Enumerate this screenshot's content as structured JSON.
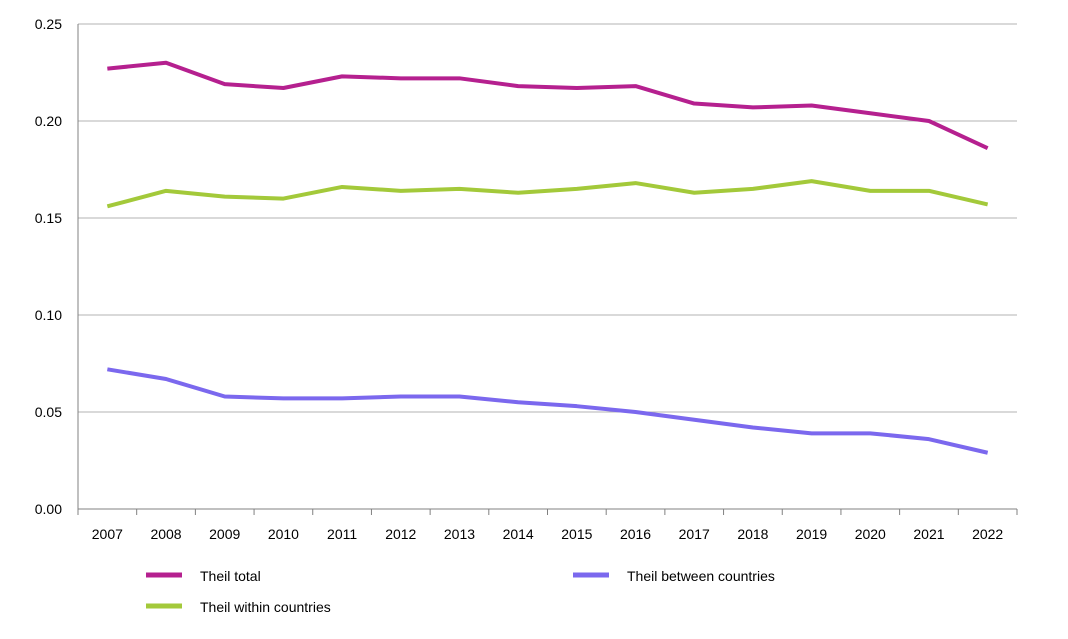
{
  "chart_data": {
    "type": "line",
    "title": "",
    "xlabel": "",
    "ylabel": "",
    "x": [
      "2007",
      "2008",
      "2009",
      "2010",
      "2011",
      "2012",
      "2013",
      "2014",
      "2015",
      "2016",
      "2017",
      "2018",
      "2019",
      "2020",
      "2021",
      "2022"
    ],
    "ylim": [
      0,
      0.25
    ],
    "yticks": [
      "0.00",
      "0.05",
      "0.10",
      "0.15",
      "0.20",
      "0.25"
    ],
    "grid": "horizontal",
    "legend_position": "bottom",
    "series": [
      {
        "name": "Theil total",
        "color": "#b5208f",
        "values": [
          0.227,
          0.23,
          0.219,
          0.217,
          0.223,
          0.222,
          0.222,
          0.218,
          0.217,
          0.218,
          0.209,
          0.207,
          0.208,
          0.204,
          0.2,
          0.186
        ]
      },
      {
        "name": "Theil within countries",
        "color": "#a3c93a",
        "values": [
          0.156,
          0.164,
          0.161,
          0.16,
          0.166,
          0.164,
          0.165,
          0.163,
          0.165,
          0.168,
          0.163,
          0.165,
          0.169,
          0.164,
          0.164,
          0.157
        ]
      },
      {
        "name": "Theil between countries",
        "color": "#7b68ee",
        "values": [
          0.072,
          0.067,
          0.058,
          0.057,
          0.057,
          0.058,
          0.058,
          0.055,
          0.053,
          0.05,
          0.046,
          0.042,
          0.039,
          0.039,
          0.036,
          0.029
        ]
      }
    ]
  }
}
